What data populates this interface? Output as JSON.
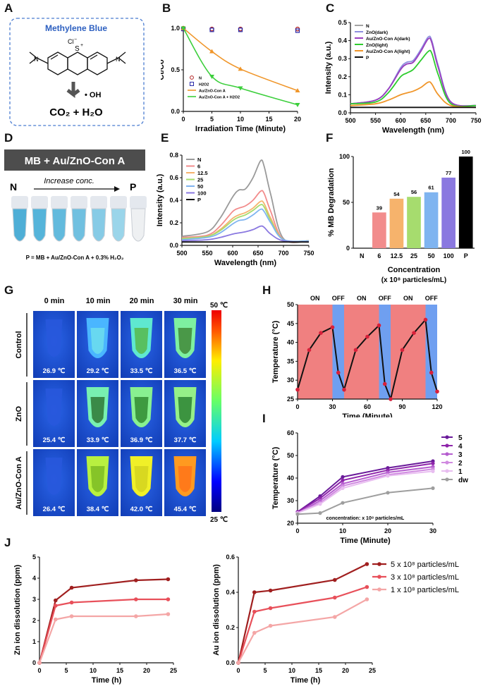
{
  "panels": {
    "A": {
      "letter": "A",
      "title": "Methylene Blue",
      "anion": "Cl",
      "sulfur": "S",
      "oh": "• OH",
      "product": "CO₂ + H₂O"
    },
    "D": {
      "letter": "D",
      "banner": "MB + Au/ZnO-Con A",
      "left": "N",
      "right": "P",
      "arrow_label": "Increase conc.",
      "footnote": "P = MB + Au/ZnO-Con A + 0.3% H₂O₂"
    },
    "G": {
      "letter": "G",
      "times": [
        "0 min",
        "10 min",
        "20 min",
        "30 min"
      ],
      "rows": [
        "Control",
        "ZnO",
        "Au/ZnO-Con A"
      ],
      "temps": [
        [
          "26.9 ℃",
          "29.2 ℃",
          "33.5 ℃",
          "36.5 ℃"
        ],
        [
          "25.4 ℃",
          "33.9 ℃",
          "36.9 ℃",
          "37.7 ℃"
        ],
        [
          "26.4 ℃",
          "38.4 ℃",
          "42.0 ℃",
          "45.4 ℃"
        ]
      ],
      "scale_max": "50 ℃",
      "scale_min": "25 ℃"
    }
  },
  "chart_data": [
    {
      "id": "B",
      "type": "line",
      "xlabel": "Irradiation Time (Minute)",
      "ylabel": "Ct/Co",
      "x": [
        0,
        5,
        10,
        20
      ],
      "xticks": [
        "0",
        "5",
        "10",
        "15",
        "20"
      ],
      "ylim": [
        0,
        1.0
      ],
      "yticks": [
        "0.0",
        "0.5",
        "1.0"
      ],
      "series": [
        {
          "name": "N",
          "values": [
            1.0,
            0.99,
            0.99,
            0.99
          ],
          "color": "#b22222"
        },
        {
          "name": "H2O2",
          "values": [
            0.99,
            0.98,
            0.98,
            0.97
          ],
          "color": "#2a2aa8"
        },
        {
          "name": "Au/ZnO-Con A",
          "values": [
            1.0,
            0.72,
            0.51,
            0.25
          ],
          "color": "#f0962a"
        },
        {
          "name": "Au/ZnO-Con A + H2O2",
          "values": [
            1.0,
            0.42,
            0.28,
            0.08
          ],
          "color": "#3ccf3c"
        }
      ]
    },
    {
      "id": "C",
      "type": "line",
      "xlabel": "Wavelength (nm)",
      "ylabel": "Intensity (a.u.)",
      "x": [
        500,
        550,
        575,
        600,
        612,
        625,
        640,
        655,
        662,
        675,
        700,
        750
      ],
      "xticks": [
        "500",
        "550",
        "600",
        "650",
        "700",
        "750"
      ],
      "ylim": [
        0,
        0.5
      ],
      "yticks": [
        "0.0",
        "0.1",
        "0.2",
        "0.3",
        "0.4",
        "0.5"
      ],
      "series": [
        {
          "name": "N",
          "values": [
            0.05,
            0.07,
            0.13,
            0.24,
            0.27,
            0.28,
            0.34,
            0.41,
            0.39,
            0.25,
            0.06,
            0.04
          ],
          "color": "#a3a3a3"
        },
        {
          "name": "ZnO(dark)",
          "values": [
            0.05,
            0.07,
            0.13,
            0.25,
            0.28,
            0.29,
            0.35,
            0.42,
            0.4,
            0.26,
            0.06,
            0.04
          ],
          "color": "#8f8fe0"
        },
        {
          "name": "Au/ZnO-Con A(dark)",
          "values": [
            0.05,
            0.07,
            0.13,
            0.24,
            0.27,
            0.28,
            0.34,
            0.41,
            0.39,
            0.25,
            0.06,
            0.04
          ],
          "color": "#9a3fc0"
        },
        {
          "name": "ZnO(light)",
          "values": [
            0.05,
            0.06,
            0.11,
            0.2,
            0.22,
            0.24,
            0.29,
            0.34,
            0.33,
            0.21,
            0.05,
            0.04
          ],
          "color": "#2ecc2e"
        },
        {
          "name": "Au/ZnO-Con A(light)",
          "values": [
            0.04,
            0.05,
            0.07,
            0.1,
            0.11,
            0.12,
            0.14,
            0.17,
            0.16,
            0.1,
            0.04,
            0.03
          ],
          "color": "#f0962a"
        },
        {
          "name": "P",
          "values": [
            0.03,
            0.03,
            0.03,
            0.03,
            0.03,
            0.03,
            0.03,
            0.03,
            0.03,
            0.03,
            0.03,
            0.03
          ],
          "color": "#111111"
        }
      ]
    },
    {
      "id": "E",
      "type": "line",
      "xlabel": "Wavelength (nm)",
      "ylabel": "Intensity (a.u.)",
      "x": [
        500,
        550,
        575,
        600,
        612,
        625,
        640,
        655,
        662,
        675,
        700,
        750
      ],
      "xticks": [
        "500",
        "550",
        "600",
        "650",
        "700",
        "750"
      ],
      "ylim": [
        0,
        0.8
      ],
      "yticks": [
        "0.0",
        "0.2",
        "0.4",
        "0.6",
        "0.8"
      ],
      "series": [
        {
          "name": "N",
          "values": [
            0.08,
            0.12,
            0.24,
            0.43,
            0.49,
            0.5,
            0.6,
            0.75,
            0.7,
            0.45,
            0.06,
            0.04
          ],
          "color": "#9a9a9a"
        },
        {
          "name": "6",
          "values": [
            0.07,
            0.09,
            0.17,
            0.3,
            0.33,
            0.35,
            0.4,
            0.48,
            0.46,
            0.3,
            0.05,
            0.04
          ],
          "color": "#f28c8c"
        },
        {
          "name": "12.5",
          "values": [
            0.06,
            0.08,
            0.14,
            0.24,
            0.27,
            0.29,
            0.33,
            0.39,
            0.37,
            0.24,
            0.05,
            0.04
          ],
          "color": "#f6b36c"
        },
        {
          "name": "25",
          "values": [
            0.06,
            0.08,
            0.13,
            0.22,
            0.25,
            0.27,
            0.31,
            0.36,
            0.34,
            0.22,
            0.05,
            0.04
          ],
          "color": "#a6dc6e"
        },
        {
          "name": "50",
          "values": [
            0.05,
            0.07,
            0.11,
            0.19,
            0.22,
            0.23,
            0.27,
            0.32,
            0.3,
            0.2,
            0.05,
            0.04
          ],
          "color": "#7fb4f0"
        },
        {
          "name": "100",
          "values": [
            0.04,
            0.05,
            0.07,
            0.1,
            0.11,
            0.12,
            0.14,
            0.17,
            0.16,
            0.1,
            0.04,
            0.03
          ],
          "color": "#8a78e0"
        },
        {
          "name": "P",
          "values": [
            0.03,
            0.03,
            0.03,
            0.03,
            0.03,
            0.03,
            0.03,
            0.03,
            0.03,
            0.03,
            0.03,
            0.03
          ],
          "color": "#111111"
        }
      ]
    },
    {
      "id": "F",
      "type": "bar",
      "xlabel": "Concentration",
      "xlabel2": "(x 10⁸ particles/mL)",
      "ylabel": "% MB Degradation",
      "categories": [
        "N",
        "6",
        "12.5",
        "25",
        "50",
        "100",
        "P"
      ],
      "values": [
        0,
        39,
        54,
        56,
        61,
        77,
        100
      ],
      "labels": [
        "",
        "39",
        "54",
        "56",
        "61",
        "77",
        "100"
      ],
      "ylim": [
        0,
        100
      ],
      "yticks": [
        "0",
        "50",
        "100"
      ],
      "colors": [
        "#ffffff",
        "#f28c8c",
        "#f6b36c",
        "#a6dc6e",
        "#7fb4f0",
        "#8a78e0",
        "#000000"
      ]
    },
    {
      "id": "H",
      "type": "line",
      "xlabel": "Time (Minute)",
      "ylabel": "Temperature (°C)",
      "x": [
        0,
        10,
        20,
        30,
        35,
        40,
        50,
        60,
        70,
        75,
        80,
        90,
        100,
        110,
        115,
        120
      ],
      "values": [
        27.5,
        38,
        42.5,
        44,
        32,
        27.5,
        38,
        41.5,
        44.5,
        29,
        25,
        38,
        42.5,
        46,
        32,
        27
      ],
      "xticks": [
        "0",
        "30",
        "60",
        "90",
        "120"
      ],
      "ylim": [
        25,
        50
      ],
      "yticks": [
        "25",
        "30",
        "35",
        "40",
        "45",
        "50"
      ],
      "bands": [
        {
          "label": "ON",
          "from": 0,
          "to": 30,
          "color": "#f08080"
        },
        {
          "label": "OFF",
          "from": 30,
          "to": 40,
          "color": "#6f9ff0"
        },
        {
          "label": "ON",
          "from": 40,
          "to": 70,
          "color": "#f08080"
        },
        {
          "label": "OFF",
          "from": 70,
          "to": 80,
          "color": "#6f9ff0"
        },
        {
          "label": "ON",
          "from": 80,
          "to": 110,
          "color": "#f08080"
        },
        {
          "label": "OFF",
          "from": 110,
          "to": 120,
          "color": "#6f9ff0"
        }
      ]
    },
    {
      "id": "I",
      "type": "line",
      "xlabel": "Time (Minute)",
      "ylabel": "Temperature (°C)",
      "note": "concentration: x 10⁸ particles/mL",
      "x": [
        0,
        5,
        10,
        20,
        30
      ],
      "xticks": [
        "0",
        "10",
        "20",
        "30"
      ],
      "ylim": [
        20,
        60
      ],
      "yticks": [
        "20",
        "30",
        "40",
        "50",
        "60"
      ],
      "series": [
        {
          "name": "5",
          "values": [
            25,
            32,
            40.5,
            44.5,
            47.5
          ],
          "color": "#6a1b9a"
        },
        {
          "name": "4",
          "values": [
            25,
            31,
            39,
            43.5,
            46.5
          ],
          "color": "#8e24aa"
        },
        {
          "name": "3",
          "values": [
            24.5,
            30,
            37.5,
            42.5,
            45
          ],
          "color": "#b55dcf"
        },
        {
          "name": "2",
          "values": [
            24.5,
            29,
            36.5,
            41.5,
            44
          ],
          "color": "#d08ae0"
        },
        {
          "name": "1",
          "values": [
            24.5,
            28.5,
            35.5,
            41,
            43
          ],
          "color": "#e8bdf0"
        },
        {
          "name": "dw",
          "values": [
            24,
            24.5,
            29,
            33.5,
            35.5
          ],
          "color": "#9e9e9e"
        }
      ]
    },
    {
      "id": "J1",
      "type": "line",
      "xlabel": "Time (h)",
      "ylabel": "Zn ion dissolution (ppm)",
      "x": [
        0,
        3,
        6,
        18,
        24
      ],
      "xticks": [
        "0",
        "5",
        "10",
        "15",
        "20",
        "25"
      ],
      "ylim": [
        0,
        5
      ],
      "yticks": [
        "0",
        "1",
        "2",
        "3",
        "4",
        "5"
      ],
      "series": [
        {
          "name": "5 x 10⁸ particles/mL",
          "values": [
            0,
            2.95,
            3.55,
            3.9,
            3.95
          ],
          "color": "#a01f1f"
        },
        {
          "name": "3 x 10⁸ particles/mL",
          "values": [
            0,
            2.7,
            2.85,
            3.0,
            3.0
          ],
          "color": "#e8505a"
        },
        {
          "name": "1 x 10⁸ particles/mL",
          "values": [
            0,
            2.05,
            2.2,
            2.2,
            2.3
          ],
          "color": "#f4a6a6"
        }
      ]
    },
    {
      "id": "J2",
      "type": "line",
      "xlabel": "Time (h)",
      "ylabel": "Au ion dissolution (ppm)",
      "x": [
        0,
        3,
        6,
        18,
        24
      ],
      "xticks": [
        "0",
        "5",
        "10",
        "15",
        "20",
        "25"
      ],
      "ylim": [
        0,
        0.6
      ],
      "yticks": [
        "0.0",
        "0.2",
        "0.4",
        "0.6"
      ],
      "series": [
        {
          "name": "5 x 10⁸ particles/mL",
          "values": [
            0,
            0.4,
            0.41,
            0.47,
            0.56
          ],
          "color": "#a01f1f"
        },
        {
          "name": "3 x 10⁸ particles/mL",
          "values": [
            0,
            0.29,
            0.31,
            0.37,
            0.43
          ],
          "color": "#e8505a"
        },
        {
          "name": "1 x 10⁸ particles/mL",
          "values": [
            0,
            0.17,
            0.21,
            0.26,
            0.36
          ],
          "color": "#f4a6a6"
        }
      ]
    }
  ],
  "letters": {
    "B": "B",
    "C": "C",
    "E": "E",
    "F": "F",
    "H": "H",
    "I": "I",
    "J": "J"
  }
}
